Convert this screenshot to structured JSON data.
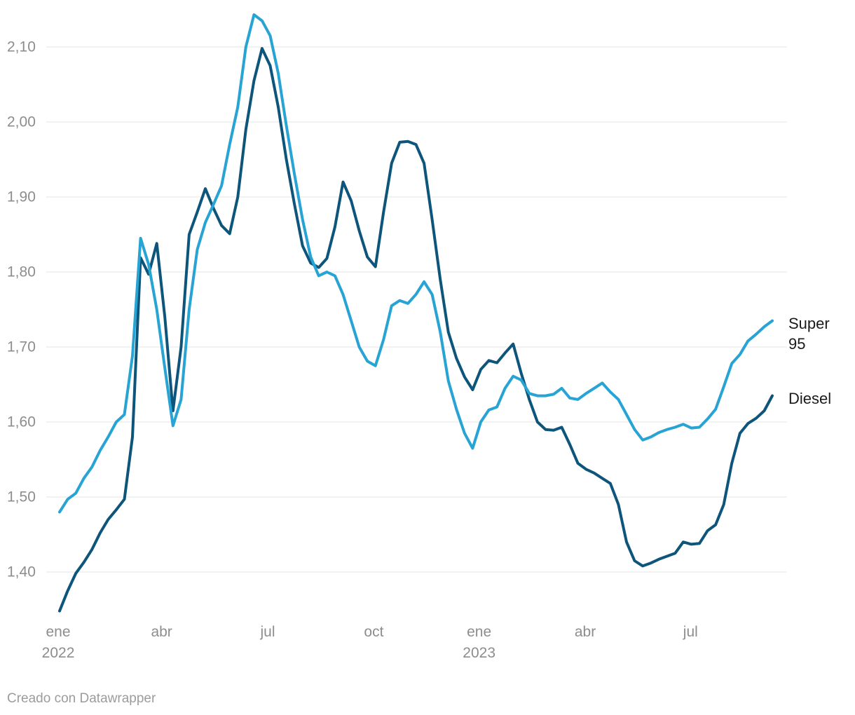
{
  "chart_data": {
    "type": "line",
    "title": "",
    "x_unit": "weekly prices, ene 2022 - sep 2023",
    "grid": "horizontal",
    "legend_position": "right-edge-labels",
    "y_ticks": [
      {
        "label": "2,10",
        "value": 2.1
      },
      {
        "label": "2,00",
        "value": 2.0
      },
      {
        "label": "1,90",
        "value": 1.9
      },
      {
        "label": "1,80",
        "value": 1.8
      },
      {
        "label": "1,70",
        "value": 1.7
      },
      {
        "label": "1,60",
        "value": 1.6
      },
      {
        "label": "1,50",
        "value": 1.5
      },
      {
        "label": "1,40",
        "value": 1.4
      }
    ],
    "x_ticks": [
      {
        "label": "ene",
        "sublabel": "2022",
        "index": -0.17
      },
      {
        "label": "abr",
        "sublabel": "",
        "index": 12.6
      },
      {
        "label": "jul",
        "sublabel": "",
        "index": 25.7
      },
      {
        "label": "oct",
        "sublabel": "",
        "index": 38.8
      },
      {
        "label": "ene",
        "sublabel": "2023",
        "index": 51.8
      },
      {
        "label": "abr",
        "sublabel": "",
        "index": 64.9
      },
      {
        "label": "jul",
        "sublabel": "",
        "index": 77.9
      }
    ],
    "y_range_drawn": [
      1.348,
      2.143
    ],
    "series": [
      {
        "name": "Diesel",
        "color": "#0d557a",
        "values": [
          1.348,
          1.375,
          1.398,
          1.413,
          1.43,
          1.452,
          1.47,
          1.483,
          1.497,
          1.58,
          1.819,
          1.797,
          1.838,
          1.74,
          1.615,
          1.7,
          1.85,
          1.88,
          1.911,
          1.885,
          1.862,
          1.851,
          1.9,
          1.99,
          2.055,
          2.098,
          2.075,
          2.02,
          1.95,
          1.89,
          1.835,
          1.812,
          1.806,
          1.818,
          1.86,
          1.92,
          1.895,
          1.855,
          1.82,
          1.807,
          1.88,
          1.945,
          1.973,
          1.974,
          1.97,
          1.945,
          1.87,
          1.79,
          1.72,
          1.685,
          1.66,
          1.643,
          1.67,
          1.682,
          1.679,
          1.692,
          1.704,
          1.665,
          1.63,
          1.6,
          1.59,
          1.589,
          1.593,
          1.57,
          1.545,
          1.537,
          1.532,
          1.525,
          1.518,
          1.49,
          1.44,
          1.415,
          1.408,
          1.412,
          1.417,
          1.421,
          1.425,
          1.44,
          1.437,
          1.438,
          1.455,
          1.463,
          1.49,
          1.545,
          1.585,
          1.598,
          1.605,
          1.615,
          1.635
        ]
      },
      {
        "name": "Super 95",
        "color": "#27a3d4",
        "values": [
          1.48,
          1.497,
          1.505,
          1.525,
          1.54,
          1.562,
          1.58,
          1.6,
          1.61,
          1.688,
          1.845,
          1.81,
          1.75,
          1.672,
          1.595,
          1.63,
          1.75,
          1.83,
          1.866,
          1.89,
          1.915,
          1.97,
          2.02,
          2.1,
          2.143,
          2.135,
          2.115,
          2.065,
          1.995,
          1.93,
          1.87,
          1.82,
          1.795,
          1.8,
          1.795,
          1.77,
          1.735,
          1.7,
          1.681,
          1.675,
          1.71,
          1.755,
          1.762,
          1.758,
          1.77,
          1.787,
          1.77,
          1.72,
          1.655,
          1.617,
          1.585,
          1.565,
          1.6,
          1.616,
          1.62,
          1.645,
          1.661,
          1.656,
          1.638,
          1.635,
          1.635,
          1.637,
          1.645,
          1.632,
          1.63,
          1.638,
          1.645,
          1.652,
          1.64,
          1.63,
          1.61,
          1.59,
          1.576,
          1.58,
          1.586,
          1.59,
          1.593,
          1.597,
          1.592,
          1.593,
          1.604,
          1.617,
          1.647,
          1.678,
          1.69,
          1.708,
          1.717,
          1.727,
          1.735
        ]
      }
    ]
  },
  "labels": {
    "super95": "Super 95",
    "diesel": "Diesel"
  },
  "footer": {
    "credit": "Creado con Datawrapper"
  },
  "colors": {
    "grid": "#e4e4e4",
    "axis_text": "#8d8d8d",
    "label_text": "#1b1b1b"
  }
}
